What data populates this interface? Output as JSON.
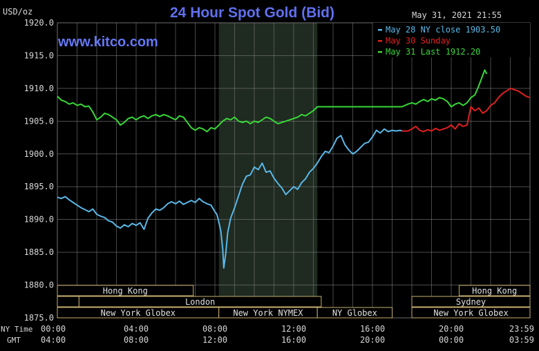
{
  "chart_data": {
    "type": "line",
    "title": "24 Hour Spot Gold (Bid)",
    "ylabel": "USD/oz",
    "timestamp": "May 31, 2021 21:55",
    "watermark": "www.kitco.com",
    "ylim": [
      1875.0,
      1920.0
    ],
    "yticks": [
      "1920.0",
      "1915.0",
      "1910.0",
      "1905.0",
      "1900.0",
      "1895.0",
      "1890.0",
      "1885.0",
      "1880.0",
      "1875.0"
    ],
    "xlim": [
      0,
      24
    ],
    "x_label_ny": "NY Time",
    "x_label_gmt": "GMT",
    "xticks_ny": [
      "00:00",
      "04:00",
      "08:00",
      "12:00",
      "16:00",
      "20:00",
      "23:59"
    ],
    "xticks_gmt": [
      "04:00",
      "08:00",
      "12:00",
      "16:00",
      "20:00",
      "00:00",
      "03:59"
    ],
    "grid": true,
    "legend_position": "top-right",
    "colors": {
      "series1": "#5ab8e8",
      "series2": "#e02020",
      "series3": "#38d838",
      "title": "#6070f0",
      "watermark": "#6478f5",
      "text": "#d8d8d8",
      "grid": "#7a7a7a",
      "shade": "#1f2a20",
      "session_border": "#c8b070",
      "session_text": "#e0e0e0"
    },
    "shaded_region": [
      8.2,
      13.2
    ],
    "series": [
      {
        "name": "May 28 NY close 1903.50",
        "color": "#5ab8e8",
        "points": [
          [
            0,
            1893.4
          ],
          [
            0.2,
            1893.2
          ],
          [
            0.4,
            1893.5
          ],
          [
            0.6,
            1893.0
          ],
          [
            0.8,
            1892.6
          ],
          [
            1.0,
            1892.2
          ],
          [
            1.2,
            1891.8
          ],
          [
            1.4,
            1891.5
          ],
          [
            1.6,
            1891.2
          ],
          [
            1.8,
            1891.6
          ],
          [
            2.0,
            1890.8
          ],
          [
            2.2,
            1890.5
          ],
          [
            2.4,
            1890.3
          ],
          [
            2.6,
            1889.8
          ],
          [
            2.8,
            1889.6
          ],
          [
            3.0,
            1889.0
          ],
          [
            3.2,
            1888.7
          ],
          [
            3.4,
            1889.2
          ],
          [
            3.6,
            1888.9
          ],
          [
            3.8,
            1889.4
          ],
          [
            4.0,
            1889.1
          ],
          [
            4.2,
            1889.5
          ],
          [
            4.4,
            1888.5
          ],
          [
            4.6,
            1890.2
          ],
          [
            4.8,
            1891.0
          ],
          [
            5.0,
            1891.6
          ],
          [
            5.2,
            1891.4
          ],
          [
            5.4,
            1891.8
          ],
          [
            5.6,
            1892.4
          ],
          [
            5.8,
            1892.7
          ],
          [
            6.0,
            1892.4
          ],
          [
            6.2,
            1892.8
          ],
          [
            6.4,
            1892.3
          ],
          [
            6.6,
            1892.6
          ],
          [
            6.8,
            1892.9
          ],
          [
            7.0,
            1892.6
          ],
          [
            7.2,
            1893.2
          ],
          [
            7.4,
            1892.7
          ],
          [
            7.6,
            1892.4
          ],
          [
            7.8,
            1892.2
          ],
          [
            8.0,
            1891.2
          ],
          [
            8.1,
            1890.8
          ],
          [
            8.2,
            1889.6
          ],
          [
            8.3,
            1888.2
          ],
          [
            8.4,
            1885.4
          ],
          [
            8.45,
            1882.6
          ],
          [
            8.55,
            1884.8
          ],
          [
            8.65,
            1888.0
          ],
          [
            8.8,
            1890.2
          ],
          [
            9.0,
            1891.8
          ],
          [
            9.2,
            1893.6
          ],
          [
            9.4,
            1895.4
          ],
          [
            9.6,
            1896.6
          ],
          [
            9.8,
            1896.8
          ],
          [
            10.0,
            1898.0
          ],
          [
            10.2,
            1897.6
          ],
          [
            10.4,
            1898.6
          ],
          [
            10.6,
            1897.2
          ],
          [
            10.8,
            1897.4
          ],
          [
            11.0,
            1896.3
          ],
          [
            11.2,
            1895.5
          ],
          [
            11.4,
            1894.8
          ],
          [
            11.6,
            1893.8
          ],
          [
            11.8,
            1894.4
          ],
          [
            12.0,
            1895.0
          ],
          [
            12.2,
            1894.6
          ],
          [
            12.4,
            1895.6
          ],
          [
            12.6,
            1896.2
          ],
          [
            12.8,
            1897.2
          ],
          [
            13.0,
            1897.8
          ],
          [
            13.2,
            1898.6
          ],
          [
            13.4,
            1899.6
          ],
          [
            13.6,
            1900.4
          ],
          [
            13.8,
            1900.2
          ],
          [
            14.0,
            1901.2
          ],
          [
            14.2,
            1902.4
          ],
          [
            14.4,
            1902.8
          ],
          [
            14.6,
            1901.4
          ],
          [
            14.8,
            1900.6
          ],
          [
            15.0,
            1900.0
          ],
          [
            15.2,
            1900.4
          ],
          [
            15.4,
            1901.0
          ],
          [
            15.6,
            1901.6
          ],
          [
            15.8,
            1901.8
          ],
          [
            16.0,
            1902.6
          ],
          [
            16.2,
            1903.6
          ],
          [
            16.4,
            1903.2
          ],
          [
            16.6,
            1903.8
          ],
          [
            16.8,
            1903.4
          ],
          [
            17.0,
            1903.6
          ],
          [
            17.2,
            1903.5
          ],
          [
            17.4,
            1903.6
          ],
          [
            17.5,
            1903.5
          ]
        ]
      },
      {
        "name": "May 30 Sunday",
        "color": "#e02020",
        "points": [
          [
            17.5,
            1903.5
          ],
          [
            17.8,
            1903.5
          ],
          [
            18.0,
            1903.8
          ],
          [
            18.2,
            1904.2
          ],
          [
            18.4,
            1903.6
          ],
          [
            18.6,
            1903.4
          ],
          [
            18.8,
            1903.7
          ],
          [
            19.0,
            1903.5
          ],
          [
            19.2,
            1903.9
          ],
          [
            19.4,
            1903.6
          ],
          [
            19.6,
            1903.8
          ],
          [
            19.8,
            1904.0
          ],
          [
            20.0,
            1904.4
          ],
          [
            20.2,
            1903.8
          ],
          [
            20.4,
            1904.6
          ],
          [
            20.6,
            1904.2
          ],
          [
            20.8,
            1904.4
          ],
          [
            21.0,
            1907.2
          ],
          [
            21.2,
            1906.6
          ],
          [
            21.4,
            1907.0
          ],
          [
            21.6,
            1906.2
          ],
          [
            21.8,
            1906.6
          ],
          [
            22.0,
            1907.4
          ],
          [
            22.2,
            1907.8
          ],
          [
            22.4,
            1908.6
          ],
          [
            22.6,
            1909.2
          ],
          [
            22.8,
            1909.6
          ],
          [
            23.0,
            1910.0
          ],
          [
            23.2,
            1909.8
          ],
          [
            23.4,
            1909.6
          ],
          [
            23.6,
            1909.2
          ],
          [
            23.8,
            1908.8
          ],
          [
            24.0,
            1908.6
          ]
        ]
      },
      {
        "name": "May 31 Last 1912.20",
        "color": "#38d838",
        "points": [
          [
            0,
            1908.8
          ],
          [
            0.2,
            1908.2
          ],
          [
            0.4,
            1908.0
          ],
          [
            0.6,
            1907.6
          ],
          [
            0.8,
            1907.8
          ],
          [
            1.0,
            1907.4
          ],
          [
            1.2,
            1907.6
          ],
          [
            1.4,
            1907.2
          ],
          [
            1.6,
            1907.3
          ],
          [
            1.8,
            1906.4
          ],
          [
            2.0,
            1905.2
          ],
          [
            2.2,
            1905.6
          ],
          [
            2.4,
            1906.2
          ],
          [
            2.6,
            1906.0
          ],
          [
            2.8,
            1905.6
          ],
          [
            3.0,
            1905.2
          ],
          [
            3.2,
            1904.4
          ],
          [
            3.4,
            1904.8
          ],
          [
            3.6,
            1905.4
          ],
          [
            3.8,
            1905.6
          ],
          [
            4.0,
            1905.2
          ],
          [
            4.2,
            1905.6
          ],
          [
            4.4,
            1905.8
          ],
          [
            4.6,
            1905.4
          ],
          [
            4.8,
            1905.8
          ],
          [
            5.0,
            1906.0
          ],
          [
            5.2,
            1905.7
          ],
          [
            5.4,
            1906.0
          ],
          [
            5.6,
            1905.8
          ],
          [
            5.8,
            1905.5
          ],
          [
            6.0,
            1905.2
          ],
          [
            6.2,
            1905.8
          ],
          [
            6.4,
            1905.6
          ],
          [
            6.6,
            1904.8
          ],
          [
            6.8,
            1904.0
          ],
          [
            7.0,
            1903.6
          ],
          [
            7.2,
            1904.0
          ],
          [
            7.4,
            1903.8
          ],
          [
            7.6,
            1903.4
          ],
          [
            7.8,
            1904.0
          ],
          [
            8.0,
            1903.8
          ],
          [
            8.2,
            1904.4
          ],
          [
            8.4,
            1905.0
          ],
          [
            8.6,
            1905.4
          ],
          [
            8.8,
            1905.2
          ],
          [
            9.0,
            1905.6
          ],
          [
            9.2,
            1905.0
          ],
          [
            9.4,
            1904.8
          ],
          [
            9.6,
            1905.0
          ],
          [
            9.8,
            1904.6
          ],
          [
            10.0,
            1905.0
          ],
          [
            10.2,
            1904.8
          ],
          [
            10.4,
            1905.2
          ],
          [
            10.6,
            1905.6
          ],
          [
            10.8,
            1905.4
          ],
          [
            11.0,
            1905.0
          ],
          [
            11.2,
            1904.6
          ],
          [
            11.4,
            1904.8
          ],
          [
            11.6,
            1905.0
          ],
          [
            11.8,
            1905.2
          ],
          [
            12.0,
            1905.4
          ],
          [
            12.2,
            1905.6
          ],
          [
            12.4,
            1906.0
          ],
          [
            12.6,
            1905.8
          ],
          [
            12.8,
            1906.2
          ],
          [
            13.0,
            1906.6
          ],
          [
            13.2,
            1907.2
          ],
          [
            17.5,
            1907.2
          ],
          [
            17.8,
            1907.6
          ],
          [
            18.0,
            1907.8
          ],
          [
            18.2,
            1907.6
          ],
          [
            18.4,
            1908.0
          ],
          [
            18.6,
            1908.3
          ],
          [
            18.8,
            1908.0
          ],
          [
            19.0,
            1908.4
          ],
          [
            19.2,
            1908.2
          ],
          [
            19.4,
            1908.6
          ],
          [
            19.6,
            1908.4
          ],
          [
            19.8,
            1908.0
          ],
          [
            20.0,
            1907.2
          ],
          [
            20.2,
            1907.6
          ],
          [
            20.4,
            1907.8
          ],
          [
            20.6,
            1907.4
          ],
          [
            20.8,
            1907.8
          ],
          [
            21.0,
            1908.6
          ],
          [
            21.2,
            1909.0
          ],
          [
            21.4,
            1910.4
          ],
          [
            21.6,
            1912.0
          ],
          [
            21.7,
            1912.8
          ],
          [
            21.8,
            1912.2
          ]
        ]
      }
    ],
    "sessions": [
      {
        "label": "Hong Kong",
        "start": 0,
        "end": 6.9,
        "row": 0
      },
      {
        "label": "Hong Kong",
        "start": 20.4,
        "end": 24,
        "row": 0
      },
      {
        "label": "",
        "start": 0,
        "end": 1.1,
        "row": 1
      },
      {
        "label": "",
        "start": 4.2,
        "end": 6.9,
        "row": 1
      },
      {
        "label": "London",
        "start": 1.1,
        "end": 13.4,
        "row": 1
      },
      {
        "label": "Sydney",
        "start": 18.0,
        "end": 24,
        "row": 1
      },
      {
        "label": "New York Globex",
        "start": 0,
        "end": 8.2,
        "row": 2
      },
      {
        "label": "New York NYMEX",
        "start": 8.2,
        "end": 13.2,
        "row": 2
      },
      {
        "label": "NY Globex",
        "start": 13.2,
        "end": 17.0,
        "row": 2
      },
      {
        "label": "New York Globex",
        "start": 18.0,
        "end": 24,
        "row": 2
      }
    ]
  }
}
